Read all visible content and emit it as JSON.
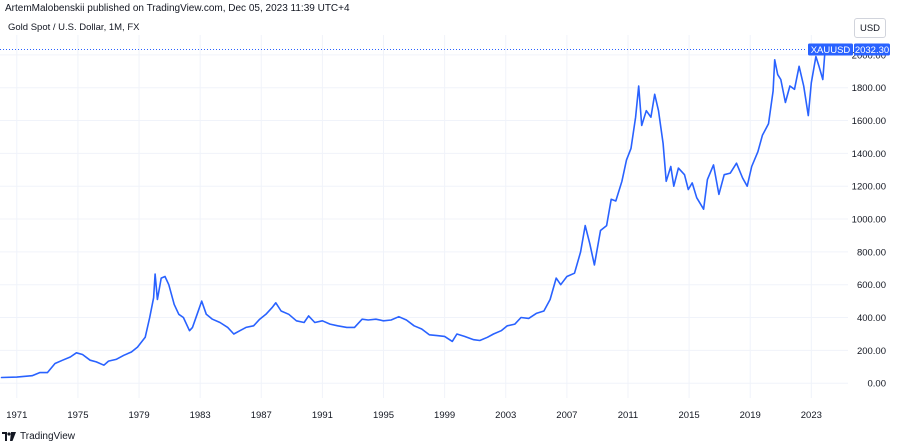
{
  "header": {
    "published_line": "ArtemMalobenskii published on TradingView.com, Dec 05, 2023 11:39 UTC+4",
    "symbol_line": "Gold Spot / U.S. Dollar, 1M, FX",
    "currency_button": "USD"
  },
  "footer": {
    "brand": "TradingView"
  },
  "colors": {
    "line": "#2962ff",
    "grid": "#f0f3fa",
    "label_bg": "#2962ff",
    "dotted": "#2962ff"
  },
  "chart_data": {
    "type": "line",
    "title": "Gold Spot / U.S. Dollar, 1M, FX",
    "ylim": [
      -90,
      2060
    ],
    "xlim": [
      1969.9,
      2025.4
    ],
    "y_ticks": [
      0,
      200,
      400,
      600,
      800,
      1000,
      1200,
      1400,
      1600,
      1800,
      2000
    ],
    "y_tick_labels": [
      "0.00",
      "200.00",
      "400.00",
      "600.00",
      "800.00",
      "1000.00",
      "1200.00",
      "1400.00",
      "1600.00",
      "1800.00",
      "2000.00"
    ],
    "x_ticks": [
      1971,
      1975,
      1979,
      1983,
      1987,
      1991,
      1995,
      1999,
      2003,
      2007,
      2011,
      2015,
      2019,
      2023
    ],
    "x_tick_labels": [
      "1971",
      "1975",
      "1979",
      "1983",
      "1987",
      "1991",
      "1995",
      "1999",
      "2003",
      "2007",
      "2011",
      "2015",
      "2019",
      "2023"
    ],
    "last_price": {
      "symbol": "XAUUSD",
      "value": 2032.3,
      "label": "2032.30"
    },
    "series": [
      {
        "name": "XAUUSD",
        "points": [
          [
            1970.0,
            35
          ],
          [
            1971.0,
            37
          ],
          [
            1972.0,
            46
          ],
          [
            1972.5,
            65
          ],
          [
            1973.0,
            65
          ],
          [
            1973.5,
            120
          ],
          [
            1974.0,
            140
          ],
          [
            1974.5,
            160
          ],
          [
            1974.9,
            185
          ],
          [
            1975.3,
            175
          ],
          [
            1975.8,
            140
          ],
          [
            1976.2,
            130
          ],
          [
            1976.7,
            110
          ],
          [
            1977.0,
            135
          ],
          [
            1977.5,
            145
          ],
          [
            1978.0,
            170
          ],
          [
            1978.5,
            190
          ],
          [
            1978.9,
            220
          ],
          [
            1979.4,
            280
          ],
          [
            1979.7,
            400
          ],
          [
            1979.95,
            520
          ],
          [
            1980.05,
            665
          ],
          [
            1980.2,
            510
          ],
          [
            1980.45,
            640
          ],
          [
            1980.7,
            650
          ],
          [
            1980.95,
            600
          ],
          [
            1981.3,
            480
          ],
          [
            1981.6,
            420
          ],
          [
            1981.9,
            400
          ],
          [
            1982.3,
            320
          ],
          [
            1982.5,
            340
          ],
          [
            1982.8,
            420
          ],
          [
            1983.1,
            500
          ],
          [
            1983.4,
            420
          ],
          [
            1983.8,
            390
          ],
          [
            1984.3,
            370
          ],
          [
            1984.8,
            340
          ],
          [
            1985.2,
            300
          ],
          [
            1985.6,
            320
          ],
          [
            1986.0,
            340
          ],
          [
            1986.5,
            350
          ],
          [
            1986.9,
            390
          ],
          [
            1987.3,
            420
          ],
          [
            1987.7,
            460
          ],
          [
            1987.95,
            490
          ],
          [
            1988.3,
            440
          ],
          [
            1988.8,
            420
          ],
          [
            1989.3,
            380
          ],
          [
            1989.8,
            370
          ],
          [
            1990.1,
            410
          ],
          [
            1990.5,
            370
          ],
          [
            1991.0,
            380
          ],
          [
            1991.5,
            360
          ],
          [
            1992.0,
            350
          ],
          [
            1992.6,
            340
          ],
          [
            1993.1,
            340
          ],
          [
            1993.6,
            390
          ],
          [
            1994.0,
            385
          ],
          [
            1994.5,
            390
          ],
          [
            1995.0,
            380
          ],
          [
            1995.5,
            385
          ],
          [
            1996.0,
            405
          ],
          [
            1996.5,
            385
          ],
          [
            1997.0,
            350
          ],
          [
            1997.5,
            330
          ],
          [
            1998.0,
            295
          ],
          [
            1998.5,
            290
          ],
          [
            1999.0,
            285
          ],
          [
            1999.5,
            255
          ],
          [
            1999.8,
            300
          ],
          [
            2000.3,
            285
          ],
          [
            2000.9,
            265
          ],
          [
            2001.3,
            260
          ],
          [
            2001.8,
            280
          ],
          [
            2002.2,
            300
          ],
          [
            2002.7,
            320
          ],
          [
            2003.1,
            350
          ],
          [
            2003.6,
            360
          ],
          [
            2004.0,
            400
          ],
          [
            2004.5,
            395
          ],
          [
            2005.0,
            425
          ],
          [
            2005.5,
            440
          ],
          [
            2005.9,
            510
          ],
          [
            2006.3,
            640
          ],
          [
            2006.6,
            600
          ],
          [
            2007.0,
            650
          ],
          [
            2007.5,
            670
          ],
          [
            2007.9,
            800
          ],
          [
            2008.2,
            960
          ],
          [
            2008.5,
            850
          ],
          [
            2008.8,
            720
          ],
          [
            2009.2,
            930
          ],
          [
            2009.6,
            960
          ],
          [
            2009.9,
            1120
          ],
          [
            2010.2,
            1110
          ],
          [
            2010.6,
            1230
          ],
          [
            2010.9,
            1360
          ],
          [
            2011.2,
            1430
          ],
          [
            2011.5,
            1620
          ],
          [
            2011.7,
            1810
          ],
          [
            2011.9,
            1570
          ],
          [
            2012.2,
            1660
          ],
          [
            2012.5,
            1620
          ],
          [
            2012.75,
            1760
          ],
          [
            2013.0,
            1660
          ],
          [
            2013.3,
            1460
          ],
          [
            2013.5,
            1230
          ],
          [
            2013.8,
            1320
          ],
          [
            2014.0,
            1200
          ],
          [
            2014.3,
            1310
          ],
          [
            2014.7,
            1270
          ],
          [
            2014.95,
            1180
          ],
          [
            2015.2,
            1220
          ],
          [
            2015.5,
            1130
          ],
          [
            2015.95,
            1060
          ],
          [
            2016.2,
            1240
          ],
          [
            2016.6,
            1330
          ],
          [
            2016.95,
            1150
          ],
          [
            2017.3,
            1270
          ],
          [
            2017.7,
            1280
          ],
          [
            2018.1,
            1340
          ],
          [
            2018.5,
            1250
          ],
          [
            2018.8,
            1200
          ],
          [
            2019.1,
            1320
          ],
          [
            2019.5,
            1410
          ],
          [
            2019.8,
            1510
          ],
          [
            2020.2,
            1580
          ],
          [
            2020.5,
            1780
          ],
          [
            2020.6,
            1970
          ],
          [
            2020.8,
            1880
          ],
          [
            2021.0,
            1850
          ],
          [
            2021.3,
            1710
          ],
          [
            2021.6,
            1810
          ],
          [
            2021.9,
            1790
          ],
          [
            2022.2,
            1930
          ],
          [
            2022.5,
            1810
          ],
          [
            2022.8,
            1630
          ],
          [
            2023.0,
            1830
          ],
          [
            2023.3,
            1990
          ],
          [
            2023.5,
            1930
          ],
          [
            2023.75,
            1850
          ],
          [
            2023.9,
            2032
          ]
        ]
      }
    ]
  }
}
